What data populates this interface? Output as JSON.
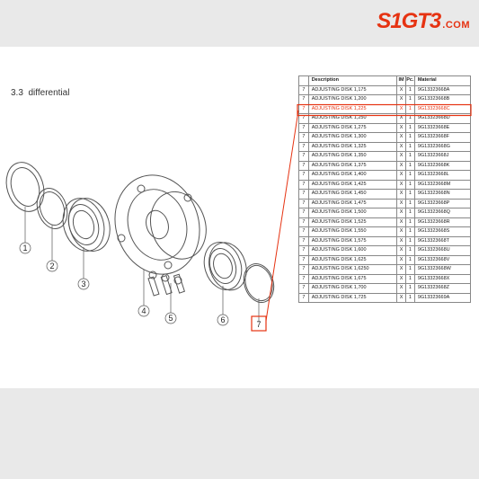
{
  "logo": {
    "text": "S1GT3",
    "suffix": ".COM",
    "color": "#e63312"
  },
  "section": {
    "number": "3.3",
    "title": "differential"
  },
  "diagram": {
    "callouts": [
      "1",
      "2",
      "3",
      "4",
      "5",
      "6",
      "7"
    ],
    "highlighted_callout": "7",
    "stroke": "#555555",
    "highlight_stroke": "#e63312"
  },
  "table": {
    "columns": [
      "",
      "Description",
      "IM",
      "Pc.",
      "Material"
    ],
    "highlight_row_index": 2,
    "highlight_color": "#e63312",
    "border_color": "#888888",
    "rows": [
      [
        "7",
        "ADJUSTING DISK 1,175",
        "X",
        "1",
        "9G13323668A"
      ],
      [
        "7",
        "ADJUSTING DISK 1,200",
        "X",
        "1",
        "9G13323668B"
      ],
      [
        "7",
        "ADJUSTING DISK 1,225",
        "X",
        "1",
        "9G13323668C"
      ],
      [
        "7",
        "ADJUSTING DISK 1,250",
        "X",
        "1",
        "9G13323668D"
      ],
      [
        "7",
        "ADJUSTING DISK 1,275",
        "X",
        "1",
        "9G13323668E"
      ],
      [
        "7",
        "ADJUSTING DISK 1,300",
        "X",
        "1",
        "9G13323668F"
      ],
      [
        "7",
        "ADJUSTING DISK 1,325",
        "X",
        "1",
        "9G13323668G"
      ],
      [
        "7",
        "ADJUSTING DISK 1,350",
        "X",
        "1",
        "9G13323668J"
      ],
      [
        "7",
        "ADJUSTING DISK 1,375",
        "X",
        "1",
        "9G13323668K"
      ],
      [
        "7",
        "ADJUSTING DISK 1,400",
        "X",
        "1",
        "9G13323668L"
      ],
      [
        "7",
        "ADJUSTING DISK 1,425",
        "X",
        "1",
        "9G13323668M"
      ],
      [
        "7",
        "ADJUSTING DISK 1,450",
        "X",
        "1",
        "9G13323668N"
      ],
      [
        "7",
        "ADJUSTING DISK 1,475",
        "X",
        "1",
        "9G13323668P"
      ],
      [
        "7",
        "ADJUSTING DISK 1,500",
        "X",
        "1",
        "9G13323668Q"
      ],
      [
        "7",
        "ADJUSTING DISK 1,525",
        "X",
        "1",
        "9G13323668R"
      ],
      [
        "7",
        "ADJUSTING DISK 1,550",
        "X",
        "1",
        "9G13323668S"
      ],
      [
        "7",
        "ADJUSTING DISK 1,575",
        "X",
        "1",
        "9G13323668T"
      ],
      [
        "7",
        "ADJUSTING DISK 1,600",
        "X",
        "1",
        "9G13323668U"
      ],
      [
        "7",
        "ADJUSTING DISK 1,625",
        "X",
        "1",
        "9G13323668V"
      ],
      [
        "7",
        "ADJUSTING DISK 1,6250",
        "X",
        "1",
        "9G13323668W"
      ],
      [
        "7",
        "ADJUSTING DISK 1,675",
        "X",
        "1",
        "9G13323668X"
      ],
      [
        "7",
        "ADJUSTING DISK 1,700",
        "X",
        "1",
        "9G13323668Z"
      ],
      [
        "7",
        "ADJUSTING DISK 1,725",
        "X",
        "1",
        "9G13323669A"
      ]
    ]
  }
}
